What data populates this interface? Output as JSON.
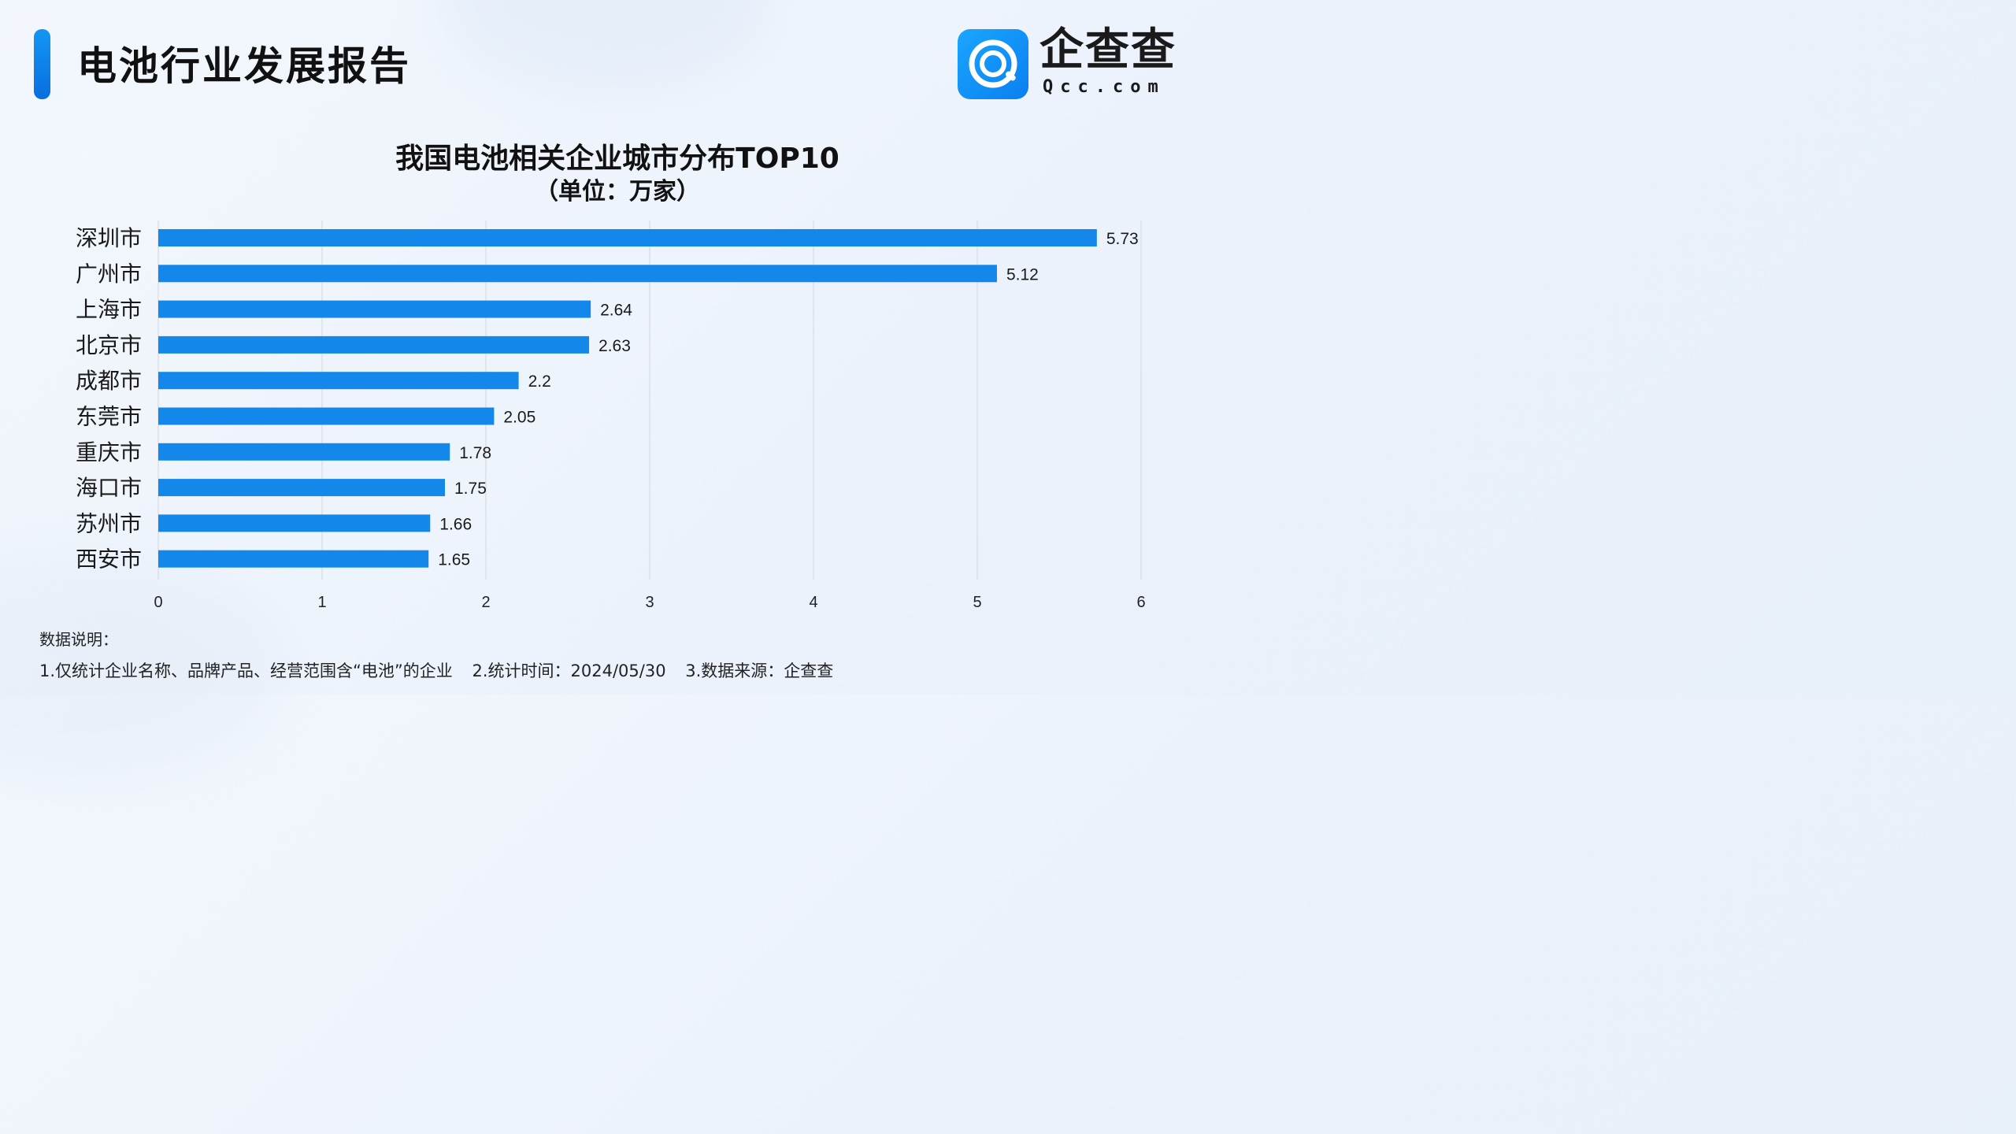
{
  "header": {
    "title": "电池行业发展报告"
  },
  "logo": {
    "brand": "企查查",
    "domain": "Qcc.com",
    "icon": "qcc-logo-icon"
  },
  "colors": {
    "bar": "#1488ea",
    "accent": "#0a7ff0",
    "grid": "#d9dde3"
  },
  "chart_data": {
    "type": "bar",
    "orientation": "horizontal",
    "title": "我国电池相关企业城市分布TOP10",
    "subtitle": "（单位：万家）",
    "categories": [
      "深圳市",
      "广州市",
      "上海市",
      "北京市",
      "成都市",
      "东莞市",
      "重庆市",
      "海口市",
      "苏州市",
      "西安市"
    ],
    "values": [
      5.73,
      5.12,
      2.64,
      2.63,
      2.2,
      2.05,
      1.78,
      1.75,
      1.66,
      1.65
    ],
    "xlim": [
      0,
      6
    ],
    "xticks": [
      "0",
      "1",
      "2",
      "3",
      "4",
      "5",
      "6"
    ],
    "grid": "vertical",
    "legend": "none"
  },
  "notes": {
    "heading": "数据说明：",
    "items": [
      "1.仅统计企业名称、品牌产品、经营范围含“电池”的企业",
      "2.统计时间：2024/05/30",
      "3.数据来源：企查查"
    ]
  }
}
